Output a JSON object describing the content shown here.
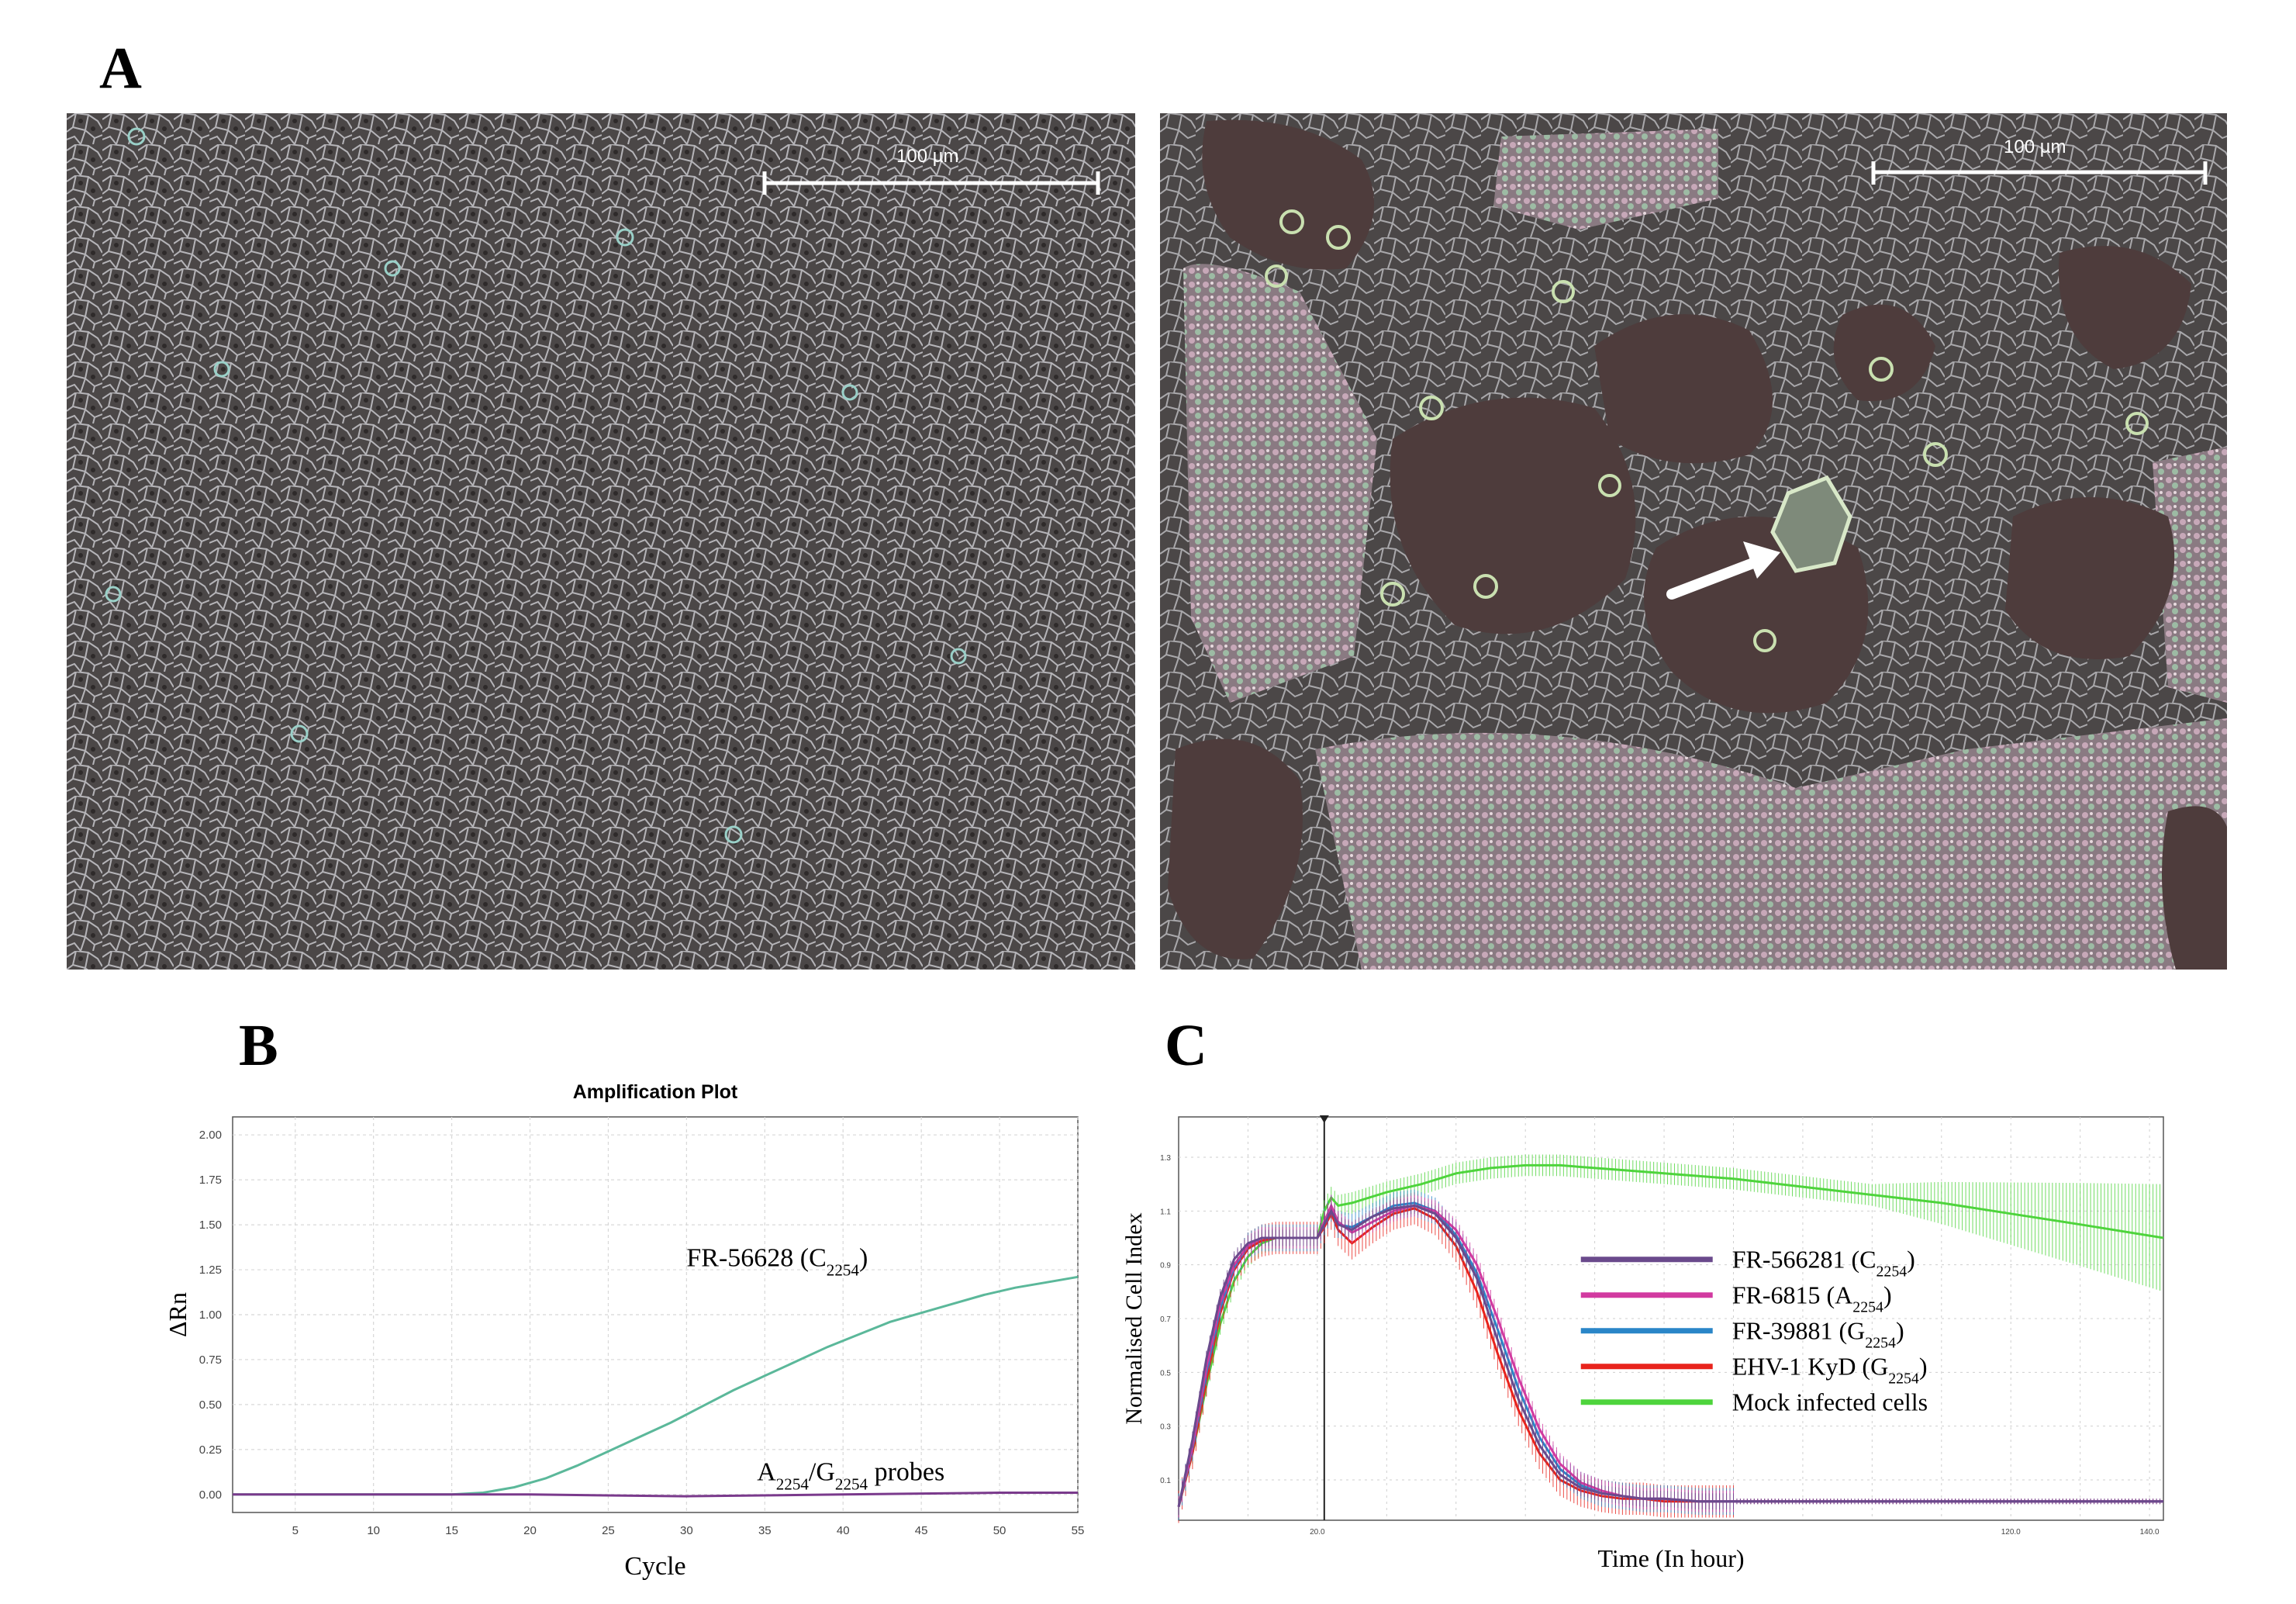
{
  "panels": {
    "a": "A",
    "b": "B",
    "c": "C"
  },
  "micro": {
    "left": {
      "scale_label": "100 µm"
    },
    "right": {
      "scale_label": "100 µm"
    }
  },
  "chart_data": [
    {
      "type": "line",
      "title": "Amplification Plot",
      "xlabel": "Cycle",
      "ylabel": "ΔRn",
      "xlim": [
        1,
        55
      ],
      "ylim": [
        -0.1,
        2.1
      ],
      "x_ticks": [
        5,
        10,
        15,
        20,
        25,
        30,
        35,
        40,
        45,
        50,
        55
      ],
      "y_ticks": [
        0.0,
        0.25,
        0.5,
        0.75,
        1.0,
        1.25,
        1.5,
        1.75,
        2.0
      ],
      "y_tick_labels": [
        "0.00",
        "0.25",
        "0.50",
        "0.75",
        "1.00",
        "1.25",
        "1.50",
        "1.75",
        "2.00"
      ],
      "grid": true,
      "annotations": {
        "curve_main": {
          "text": "FR-56628 (C",
          "sub": "2254",
          "tail": ")"
        },
        "curve_flat": {
          "pre1": "A",
          "sub1": "2254",
          "mid": "/G",
          "sub2": "2254",
          "post": " probes"
        }
      },
      "series": [
        {
          "color": "#5bb89a",
          "x": [
            1,
            5,
            10,
            15,
            17,
            19,
            21,
            23,
            25,
            27,
            29,
            31,
            33,
            35,
            37,
            39,
            41,
            43,
            45,
            47,
            49,
            51,
            53,
            55
          ],
          "y": [
            0.0,
            0.0,
            0.0,
            0.0,
            0.01,
            0.04,
            0.09,
            0.16,
            0.24,
            0.32,
            0.4,
            0.49,
            0.58,
            0.66,
            0.74,
            0.82,
            0.89,
            0.96,
            1.01,
            1.06,
            1.11,
            1.15,
            1.18,
            1.21
          ]
        },
        {
          "color": "#7a3a8c",
          "x": [
            1,
            10,
            20,
            30,
            40,
            50,
            55
          ],
          "y": [
            0.0,
            0.0,
            0.0,
            -0.01,
            0.0,
            0.01,
            0.01
          ]
        }
      ]
    },
    {
      "type": "line",
      "xlabel": "Time (In hour)",
      "ylabel": "Normalised Cell Index",
      "xlim": [
        0,
        142
      ],
      "ylim": [
        -0.05,
        1.45
      ],
      "x_ticks": [
        20,
        120,
        140
      ],
      "x_tick_labels": [
        "20.0",
        "120.0",
        "140.0"
      ],
      "y_ticks": [
        0.1,
        0.3,
        0.5,
        0.7,
        0.9,
        1.1,
        1.3
      ],
      "y_tick_labels": [
        "0.1",
        "0.3",
        "0.5",
        "0.7",
        "0.9",
        "1.1",
        "1.3"
      ],
      "grid": true,
      "legend_position": "center-right",
      "series": [
        {
          "name": "FR-566281 (C",
          "sub": "2254",
          "tail": ")",
          "color": "#6a4a8c",
          "x": [
            0,
            2,
            4,
            6,
            8,
            10,
            12,
            14,
            16,
            18,
            20,
            21,
            22,
            23,
            25,
            28,
            31,
            34,
            37,
            40,
            43,
            46,
            49,
            52,
            55,
            58,
            61,
            64,
            67,
            70,
            75,
            80,
            90,
            100,
            110,
            120,
            130,
            142
          ],
          "y": [
            0.0,
            0.25,
            0.55,
            0.78,
            0.92,
            0.98,
            1.0,
            1.0,
            1.0,
            1.0,
            1.0,
            1.05,
            1.1,
            1.05,
            1.03,
            1.08,
            1.11,
            1.12,
            1.09,
            1.0,
            0.85,
            0.62,
            0.4,
            0.23,
            0.12,
            0.07,
            0.05,
            0.04,
            0.03,
            0.03,
            0.02,
            0.02,
            0.02,
            0.02,
            0.02,
            0.02,
            0.02,
            0.02
          ],
          "err": 0.03
        },
        {
          "name": "FR-6815 (A",
          "sub": "2254",
          "tail": ")",
          "color": "#d23aa0",
          "x": [
            0,
            2,
            4,
            6,
            8,
            10,
            12,
            14,
            16,
            18,
            20,
            21,
            22,
            23,
            25,
            28,
            31,
            34,
            37,
            40,
            43,
            46,
            49,
            52,
            55,
            58,
            61,
            64,
            67,
            70,
            75,
            80,
            90,
            100,
            110,
            120,
            130,
            142
          ],
          "y": [
            0.0,
            0.23,
            0.52,
            0.76,
            0.9,
            0.97,
            1.0,
            1.0,
            1.0,
            1.0,
            1.0,
            1.06,
            1.12,
            1.06,
            1.02,
            1.06,
            1.1,
            1.12,
            1.1,
            1.03,
            0.9,
            0.7,
            0.48,
            0.29,
            0.16,
            0.09,
            0.06,
            0.04,
            0.03,
            0.03,
            0.02,
            0.02,
            0.02,
            0.02,
            0.02,
            0.02,
            0.02,
            0.02
          ],
          "err": 0.04
        },
        {
          "name": "FR-39881 (G",
          "sub": "2254",
          "tail": ")",
          "color": "#2a86c8",
          "x": [
            0,
            2,
            4,
            6,
            8,
            10,
            12,
            14,
            16,
            18,
            20,
            21,
            22,
            23,
            25,
            28,
            31,
            34,
            37,
            40,
            43,
            46,
            49,
            52,
            55,
            58,
            61,
            64,
            67,
            70,
            75,
            80,
            90,
            100,
            110,
            120,
            130,
            142
          ],
          "y": [
            0.0,
            0.22,
            0.5,
            0.74,
            0.89,
            0.97,
            1.0,
            1.0,
            1.0,
            1.0,
            1.0,
            1.06,
            1.11,
            1.05,
            1.04,
            1.08,
            1.12,
            1.13,
            1.1,
            1.01,
            0.87,
            0.66,
            0.44,
            0.26,
            0.14,
            0.08,
            0.05,
            0.04,
            0.03,
            0.03,
            0.02,
            0.02,
            0.02,
            0.02,
            0.02,
            0.02,
            0.02,
            0.02
          ],
          "err": 0.05
        },
        {
          "name": "EHV-1 KyD (G",
          "sub": "2254",
          "tail": ")",
          "color": "#e8231c",
          "x": [
            0,
            2,
            4,
            6,
            8,
            10,
            12,
            14,
            16,
            18,
            20,
            21,
            22,
            23,
            25,
            28,
            31,
            34,
            37,
            40,
            43,
            46,
            49,
            52,
            55,
            58,
            61,
            64,
            67,
            70,
            75,
            80,
            90,
            100,
            110,
            120,
            130,
            142
          ],
          "y": [
            0.0,
            0.2,
            0.47,
            0.72,
            0.88,
            0.96,
            0.99,
            1.0,
            1.0,
            1.0,
            1.0,
            1.04,
            1.09,
            1.03,
            0.98,
            1.04,
            1.09,
            1.11,
            1.07,
            0.97,
            0.8,
            0.57,
            0.36,
            0.2,
            0.1,
            0.06,
            0.04,
            0.03,
            0.03,
            0.02,
            0.02,
            0.02,
            0.02,
            0.02,
            0.02,
            0.02,
            0.02,
            0.02
          ],
          "err": 0.06
        },
        {
          "name": "Mock infected cells",
          "color": "#4ed43c",
          "x": [
            0,
            2,
            4,
            6,
            8,
            10,
            12,
            14,
            16,
            18,
            20,
            21,
            22,
            23,
            25,
            30,
            35,
            40,
            45,
            50,
            55,
            60,
            65,
            70,
            75,
            80,
            90,
            100,
            110,
            120,
            130,
            142
          ],
          "y": [
            0.0,
            0.2,
            0.45,
            0.68,
            0.84,
            0.93,
            0.98,
            1.0,
            1.0,
            1.0,
            1.0,
            1.1,
            1.15,
            1.12,
            1.13,
            1.17,
            1.2,
            1.24,
            1.26,
            1.27,
            1.27,
            1.26,
            1.25,
            1.24,
            1.23,
            1.22,
            1.19,
            1.16,
            1.13,
            1.09,
            1.05,
            1.0
          ],
          "err": 0.04
        }
      ]
    }
  ]
}
